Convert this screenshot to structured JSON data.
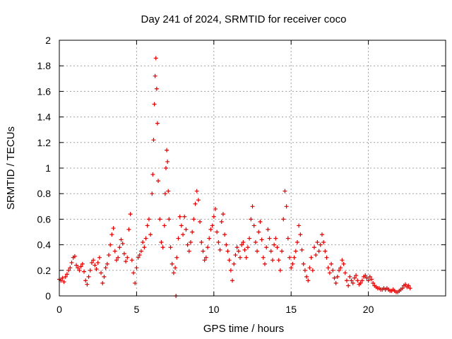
{
  "chart_data": {
    "type": "scatter",
    "title": "Day 241 of 2024, SRMTID for receiver coco",
    "xlabel": "GPS time / hours",
    "ylabel": "SRMTID / TECUs",
    "xlim": [
      0,
      25
    ],
    "ylim": [
      0,
      2
    ],
    "xticks": [
      0,
      5,
      10,
      15,
      20
    ],
    "xtick_labels": [
      "0",
      "5",
      "10",
      "15",
      "20"
    ],
    "yticks": [
      0,
      0.2,
      0.4,
      0.6,
      0.8,
      1,
      1.2,
      1.4,
      1.6,
      1.8,
      2
    ],
    "ytick_labels": [
      "0",
      "0.2",
      "0.4",
      "0.6",
      "0.8",
      "1",
      "1.2",
      "1.4",
      "1.6",
      "1.8",
      "2"
    ],
    "grid": true,
    "marker": "+",
    "color": "#e00000",
    "series": [
      {
        "name": "SRMTID",
        "points": [
          [
            0.0,
            0.13
          ],
          [
            0.1,
            0.12
          ],
          [
            0.2,
            0.14
          ],
          [
            0.3,
            0.11
          ],
          [
            0.4,
            0.15
          ],
          [
            0.5,
            0.17
          ],
          [
            0.6,
            0.2
          ],
          [
            0.7,
            0.22
          ],
          [
            0.8,
            0.26
          ],
          [
            0.9,
            0.3
          ],
          [
            1.0,
            0.31
          ],
          [
            1.1,
            0.24
          ],
          [
            1.2,
            0.22
          ],
          [
            1.3,
            0.2
          ],
          [
            1.4,
            0.23
          ],
          [
            1.5,
            0.25
          ],
          [
            1.6,
            0.19
          ],
          [
            1.7,
            0.12
          ],
          [
            1.8,
            0.09
          ],
          [
            1.9,
            0.15
          ],
          [
            2.0,
            0.2
          ],
          [
            2.1,
            0.26
          ],
          [
            2.2,
            0.28
          ],
          [
            2.3,
            0.24
          ],
          [
            2.4,
            0.21
          ],
          [
            2.5,
            0.26
          ],
          [
            2.6,
            0.3
          ],
          [
            2.7,
            0.18
          ],
          [
            2.8,
            0.1
          ],
          [
            2.9,
            0.15
          ],
          [
            3.0,
            0.22
          ],
          [
            3.1,
            0.25
          ],
          [
            3.2,
            0.32
          ],
          [
            3.3,
            0.4
          ],
          [
            3.4,
            0.48
          ],
          [
            3.5,
            0.53
          ],
          [
            3.6,
            0.35
          ],
          [
            3.7,
            0.28
          ],
          [
            3.8,
            0.3
          ],
          [
            3.9,
            0.38
          ],
          [
            4.0,
            0.44
          ],
          [
            4.1,
            0.41
          ],
          [
            4.2,
            0.33
          ],
          [
            4.3,
            0.27
          ],
          [
            4.4,
            0.3
          ],
          [
            4.5,
            0.52
          ],
          [
            4.6,
            0.64
          ],
          [
            4.7,
            0.28
          ],
          [
            4.8,
            0.18
          ],
          [
            4.9,
            0.1
          ],
          [
            5.0,
            0.22
          ],
          [
            5.1,
            0.3
          ],
          [
            5.2,
            0.32
          ],
          [
            5.3,
            0.35
          ],
          [
            5.4,
            0.42
          ],
          [
            5.5,
            0.38
          ],
          [
            5.6,
            0.45
          ],
          [
            5.7,
            0.55
          ],
          [
            5.8,
            0.6
          ],
          [
            5.9,
            0.48
          ],
          [
            6.0,
            0.8
          ],
          [
            6.05,
            0.95
          ],
          [
            6.1,
            1.22
          ],
          [
            6.15,
            1.5
          ],
          [
            6.2,
            1.72
          ],
          [
            6.25,
            1.86
          ],
          [
            6.3,
            1.62
          ],
          [
            6.35,
            1.35
          ],
          [
            6.4,
            0.9
          ],
          [
            6.5,
            0.6
          ],
          [
            6.6,
            0.42
          ],
          [
            6.7,
            0.38
          ],
          [
            6.8,
            0.55
          ],
          [
            6.85,
            0.8
          ],
          [
            6.9,
            1.0
          ],
          [
            6.95,
            1.14
          ],
          [
            7.0,
            1.05
          ],
          [
            7.05,
            0.82
          ],
          [
            7.1,
            0.6
          ],
          [
            7.2,
            0.38
          ],
          [
            7.3,
            0.25
          ],
          [
            7.4,
            0.18
          ],
          [
            7.5,
            0.22
          ],
          [
            7.55,
            0.0
          ],
          [
            7.6,
            0.3
          ],
          [
            7.7,
            0.45
          ],
          [
            7.8,
            0.62
          ],
          [
            7.9,
            0.55
          ],
          [
            8.0,
            0.48
          ],
          [
            8.1,
            0.62
          ],
          [
            8.2,
            0.52
          ],
          [
            8.3,
            0.4
          ],
          [
            8.4,
            0.35
          ],
          [
            8.5,
            0.42
          ],
          [
            8.6,
            0.5
          ],
          [
            8.7,
            0.6
          ],
          [
            8.8,
            0.72
          ],
          [
            8.9,
            0.82
          ],
          [
            9.0,
            0.75
          ],
          [
            9.1,
            0.58
          ],
          [
            9.2,
            0.42
          ],
          [
            9.3,
            0.35
          ],
          [
            9.4,
            0.28
          ],
          [
            9.5,
            0.3
          ],
          [
            9.6,
            0.38
          ],
          [
            9.7,
            0.45
          ],
          [
            9.8,
            0.52
          ],
          [
            9.9,
            0.55
          ],
          [
            10.0,
            0.62
          ],
          [
            10.1,
            0.68
          ],
          [
            10.2,
            0.5
          ],
          [
            10.3,
            0.42
          ],
          [
            10.4,
            0.36
          ],
          [
            10.5,
            0.58
          ],
          [
            10.6,
            0.64
          ],
          [
            10.7,
            0.48
          ],
          [
            10.8,
            0.4
          ],
          [
            10.9,
            0.35
          ],
          [
            11.0,
            0.28
          ],
          [
            11.1,
            0.2
          ],
          [
            11.2,
            0.12
          ],
          [
            11.3,
            0.25
          ],
          [
            11.4,
            0.32
          ],
          [
            11.5,
            0.38
          ],
          [
            11.6,
            0.35
          ],
          [
            11.7,
            0.3
          ],
          [
            11.8,
            0.4
          ],
          [
            11.9,
            0.42
          ],
          [
            12.0,
            0.36
          ],
          [
            12.1,
            0.3
          ],
          [
            12.2,
            0.38
          ],
          [
            12.3,
            0.45
          ],
          [
            12.4,
            0.6
          ],
          [
            12.5,
            0.7
          ],
          [
            12.6,
            0.55
          ],
          [
            12.7,
            0.42
          ],
          [
            12.8,
            0.35
          ],
          [
            12.9,
            0.5
          ],
          [
            13.0,
            0.58
          ],
          [
            13.1,
            0.44
          ],
          [
            13.2,
            0.3
          ],
          [
            13.3,
            0.25
          ],
          [
            13.4,
            0.38
          ],
          [
            13.5,
            0.52
          ],
          [
            13.6,
            0.45
          ],
          [
            13.7,
            0.35
          ],
          [
            13.8,
            0.28
          ],
          [
            13.9,
            0.4
          ],
          [
            14.0,
            0.45
          ],
          [
            14.1,
            0.38
          ],
          [
            14.2,
            0.28
          ],
          [
            14.3,
            0.2
          ],
          [
            14.4,
            0.35
          ],
          [
            14.5,
            0.6
          ],
          [
            14.6,
            0.82
          ],
          [
            14.7,
            0.7
          ],
          [
            14.8,
            0.45
          ],
          [
            14.9,
            0.3
          ],
          [
            15.0,
            0.22
          ],
          [
            15.1,
            0.25
          ],
          [
            15.2,
            0.3
          ],
          [
            15.3,
            0.35
          ],
          [
            15.4,
            0.42
          ],
          [
            15.5,
            0.55
          ],
          [
            15.6,
            0.48
          ],
          [
            15.7,
            0.36
          ],
          [
            15.8,
            0.25
          ],
          [
            15.9,
            0.2
          ],
          [
            16.0,
            0.15
          ],
          [
            16.1,
            0.12
          ],
          [
            16.2,
            0.22
          ],
          [
            16.3,
            0.3
          ],
          [
            16.4,
            0.2
          ],
          [
            16.5,
            0.38
          ],
          [
            16.6,
            0.32
          ],
          [
            16.7,
            0.42
          ],
          [
            16.8,
            0.35
          ],
          [
            16.9,
            0.4
          ],
          [
            17.0,
            0.48
          ],
          [
            17.1,
            0.42
          ],
          [
            17.2,
            0.35
          ],
          [
            17.3,
            0.3
          ],
          [
            17.4,
            0.22
          ],
          [
            17.5,
            0.18
          ],
          [
            17.6,
            0.25
          ],
          [
            17.7,
            0.2
          ],
          [
            17.8,
            0.14
          ],
          [
            17.9,
            0.1
          ],
          [
            18.0,
            0.15
          ],
          [
            18.1,
            0.2
          ],
          [
            18.2,
            0.22
          ],
          [
            18.3,
            0.28
          ],
          [
            18.4,
            0.25
          ],
          [
            18.5,
            0.18
          ],
          [
            18.6,
            0.12
          ],
          [
            18.7,
            0.08
          ],
          [
            18.8,
            0.15
          ],
          [
            18.9,
            0.12
          ],
          [
            19.0,
            0.1
          ],
          [
            19.1,
            0.14
          ],
          [
            19.2,
            0.16
          ],
          [
            19.3,
            0.12
          ],
          [
            19.4,
            0.09
          ],
          [
            19.5,
            0.1
          ],
          [
            19.6,
            0.12
          ],
          [
            19.7,
            0.15
          ],
          [
            19.8,
            0.16
          ],
          [
            19.9,
            0.14
          ],
          [
            20.0,
            0.12
          ],
          [
            20.1,
            0.15
          ],
          [
            20.2,
            0.13
          ],
          [
            20.3,
            0.1
          ],
          [
            20.4,
            0.08
          ],
          [
            20.5,
            0.07
          ],
          [
            20.6,
            0.06
          ],
          [
            20.7,
            0.06
          ],
          [
            20.8,
            0.05
          ],
          [
            20.9,
            0.05
          ],
          [
            21.0,
            0.06
          ],
          [
            21.1,
            0.05
          ],
          [
            21.2,
            0.06
          ],
          [
            21.3,
            0.05
          ],
          [
            21.4,
            0.04
          ],
          [
            21.5,
            0.04
          ],
          [
            21.6,
            0.05
          ],
          [
            21.7,
            0.04
          ],
          [
            21.8,
            0.03
          ],
          [
            21.9,
            0.03
          ],
          [
            22.0,
            0.04
          ],
          [
            22.1,
            0.05
          ],
          [
            22.2,
            0.06
          ],
          [
            22.3,
            0.08
          ],
          [
            22.4,
            0.09
          ],
          [
            22.5,
            0.07
          ],
          [
            22.6,
            0.08
          ],
          [
            22.7,
            0.06
          ]
        ]
      }
    ]
  }
}
